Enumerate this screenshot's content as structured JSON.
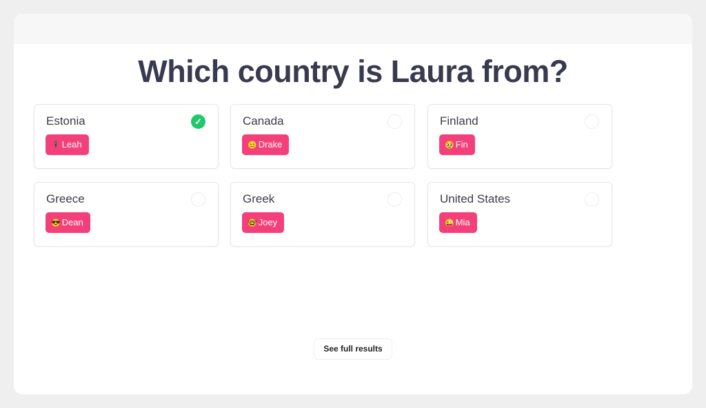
{
  "question": "Which country is Laura from?",
  "colors": {
    "correct": "#1fc96a",
    "tag": "#f4407a",
    "title": "#383a4f"
  },
  "options": [
    {
      "label": "Estonia",
      "selected": true,
      "voter": {
        "emoji": "🕴",
        "name": "Leah"
      }
    },
    {
      "label": "Canada",
      "selected": false,
      "voter": {
        "emoji": "😐",
        "name": "Drake"
      }
    },
    {
      "label": "Finland",
      "selected": false,
      "voter": {
        "emoji": "🥹",
        "name": "Fin"
      }
    },
    {
      "label": "Greece",
      "selected": false,
      "voter": {
        "emoji": "😎",
        "name": "Dean"
      }
    },
    {
      "label": "Greek",
      "selected": false,
      "voter": {
        "emoji": "🤓",
        "name": "Joey"
      }
    },
    {
      "label": "United States",
      "selected": false,
      "voter": {
        "emoji": "😜",
        "name": "Mia"
      }
    }
  ],
  "check_icon": "✓",
  "see_results_label": "See full results"
}
